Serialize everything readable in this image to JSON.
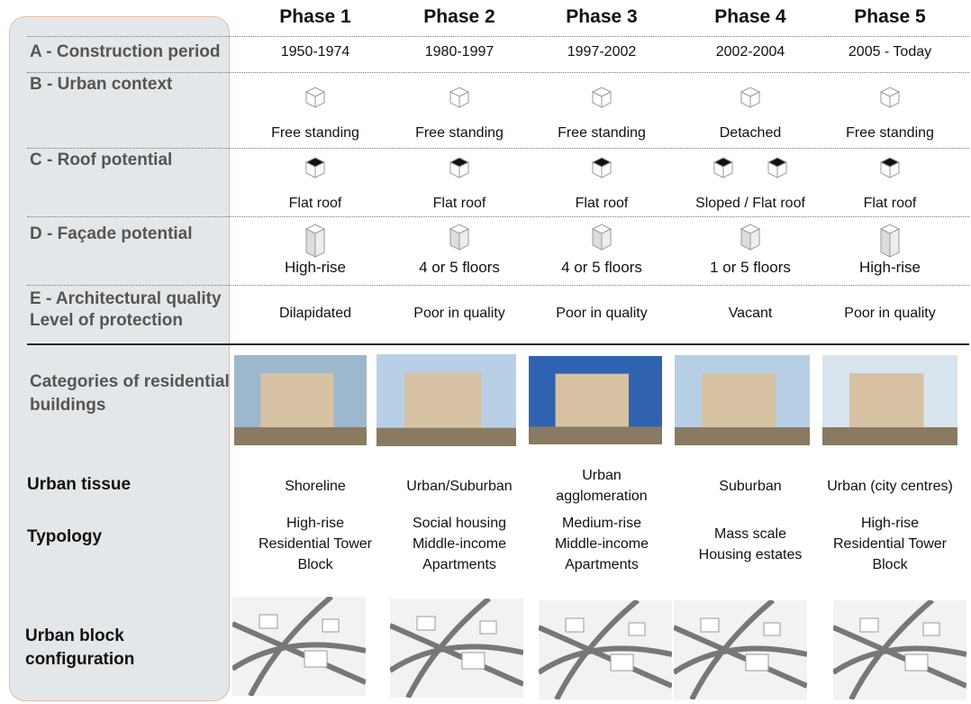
{
  "phases": [
    "Phase 1",
    "Phase 2",
    "Phase 3",
    "Phase 4",
    "Phase 5"
  ],
  "rows": [
    {
      "label": [
        "A - Construction period"
      ],
      "cells": [
        "1950-1974",
        "1980-1997",
        "1997-2002",
        "2002-2004",
        "2005 - Today"
      ]
    },
    {
      "label": [
        "B - Urban context"
      ],
      "cells": [
        "Free standing",
        "Free standing",
        "Free standing",
        "Detached",
        "Free standing"
      ]
    },
    {
      "label": [
        "C - Roof potential"
      ],
      "cells": [
        "Flat roof",
        "Flat roof",
        "Flat roof",
        "Sloped / Flat roof",
        "Flat roof"
      ]
    },
    {
      "label": [
        "D - Façade potential"
      ],
      "cells": [
        "High-rise",
        "4 or 5 floors",
        "4 or 5 floors",
        "1 or 5 floors",
        "High-rise"
      ]
    },
    {
      "label": [
        "E - Architectural quality",
        "Level of protection"
      ],
      "cells": [
        "Dilapidated",
        "Poor in quality",
        "Poor in quality",
        "Vacant",
        "Poor in quality"
      ]
    }
  ],
  "categories_label": [
    "Categories of residential",
    "buildings"
  ],
  "urban_tissue": {
    "label": [
      "Urban tissue"
    ],
    "cells": [
      [
        "Shoreline"
      ],
      [
        "Urban/Suburban"
      ],
      [
        "Urban",
        "agglomeration"
      ],
      [
        "Suburban"
      ],
      [
        "Urban (city centres)"
      ]
    ]
  },
  "typology": {
    "label": [
      "Typology"
    ],
    "cells": [
      [
        "High-rise",
        "Residential Tower",
        "Block"
      ],
      [
        "Social housing",
        "Middle-income",
        "Apartments"
      ],
      [
        "Medium-rise",
        "Middle-income",
        "Apartments"
      ],
      [
        "Mass scale",
        "Housing estates"
      ],
      [
        "High-rise",
        "Residential Tower",
        "Block"
      ]
    ]
  },
  "urban_block": {
    "label": [
      "Urban block",
      "configuration"
    ]
  }
}
